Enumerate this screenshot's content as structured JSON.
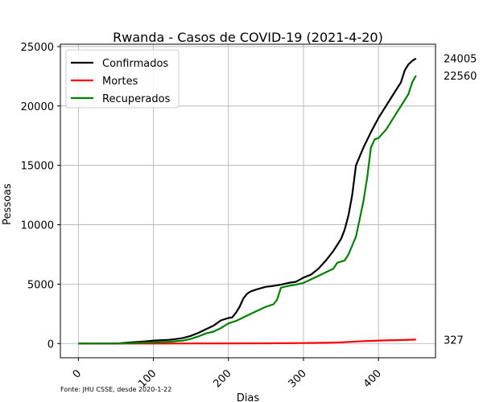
{
  "chart_data": {
    "type": "line",
    "title": "Rwanda - Casos de COVID-19 (2021-4-20)",
    "xlabel": "Dias",
    "ylabel": "Pessoas",
    "xlim": [
      -24,
      476
    ],
    "ylim": [
      -1200,
      25200
    ],
    "xticks": [
      0,
      100,
      200,
      300,
      400
    ],
    "yticks": [
      0,
      5000,
      10000,
      15000,
      20000,
      25000
    ],
    "grid": true,
    "legend_position": "top-left",
    "source": "Fonte: JHU CSSE, desde 2020-1-22",
    "series": [
      {
        "name": "Confirmados",
        "color": "#000000",
        "end_label": "24005",
        "points": [
          [
            0,
            0
          ],
          [
            40,
            0
          ],
          [
            55,
            20
          ],
          [
            70,
            100
          ],
          [
            90,
            180
          ],
          [
            100,
            250
          ],
          [
            120,
            310
          ],
          [
            130,
            380
          ],
          [
            140,
            470
          ],
          [
            150,
            650
          ],
          [
            160,
            900
          ],
          [
            170,
            1200
          ],
          [
            180,
            1500
          ],
          [
            190,
            1950
          ],
          [
            200,
            2150
          ],
          [
            205,
            2200
          ],
          [
            210,
            2600
          ],
          [
            215,
            3100
          ],
          [
            220,
            3800
          ],
          [
            225,
            4200
          ],
          [
            230,
            4400
          ],
          [
            240,
            4600
          ],
          [
            250,
            4780
          ],
          [
            260,
            4850
          ],
          [
            270,
            4950
          ],
          [
            280,
            5100
          ],
          [
            290,
            5200
          ],
          [
            300,
            5550
          ],
          [
            310,
            5800
          ],
          [
            320,
            6300
          ],
          [
            330,
            7000
          ],
          [
            340,
            7800
          ],
          [
            350,
            8800
          ],
          [
            355,
            9600
          ],
          [
            360,
            10800
          ],
          [
            365,
            12500
          ],
          [
            370,
            15000
          ],
          [
            380,
            16500
          ],
          [
            390,
            17800
          ],
          [
            400,
            19000
          ],
          [
            410,
            20000
          ],
          [
            420,
            21000
          ],
          [
            430,
            22000
          ],
          [
            435,
            23000
          ],
          [
            440,
            23500
          ],
          [
            445,
            23800
          ],
          [
            450,
            24005
          ]
        ]
      },
      {
        "name": "Mortes",
        "color": "#ff0000",
        "end_label": "327",
        "points": [
          [
            0,
            0
          ],
          [
            100,
            0
          ],
          [
            150,
            5
          ],
          [
            200,
            10
          ],
          [
            250,
            20
          ],
          [
            300,
            40
          ],
          [
            330,
            60
          ],
          [
            350,
            100
          ],
          [
            380,
            200
          ],
          [
            400,
            250
          ],
          [
            420,
            280
          ],
          [
            450,
            327
          ]
        ]
      },
      {
        "name": "Recuperados",
        "color": "#008000",
        "end_label": "22560",
        "points": [
          [
            0,
            0
          ],
          [
            50,
            0
          ],
          [
            80,
            50
          ],
          [
            100,
            100
          ],
          [
            120,
            150
          ],
          [
            140,
            250
          ],
          [
            150,
            400
          ],
          [
            160,
            600
          ],
          [
            170,
            850
          ],
          [
            180,
            1000
          ],
          [
            190,
            1300
          ],
          [
            200,
            1700
          ],
          [
            210,
            1900
          ],
          [
            220,
            2200
          ],
          [
            230,
            2500
          ],
          [
            240,
            2800
          ],
          [
            250,
            3100
          ],
          [
            260,
            3300
          ],
          [
            265,
            3700
          ],
          [
            270,
            4700
          ],
          [
            280,
            4850
          ],
          [
            290,
            4950
          ],
          [
            300,
            5100
          ],
          [
            310,
            5400
          ],
          [
            320,
            5700
          ],
          [
            330,
            6000
          ],
          [
            340,
            6300
          ],
          [
            345,
            6800
          ],
          [
            355,
            7000
          ],
          [
            360,
            7500
          ],
          [
            370,
            9000
          ],
          [
            375,
            10500
          ],
          [
            380,
            12000
          ],
          [
            385,
            14000
          ],
          [
            390,
            16500
          ],
          [
            395,
            17200
          ],
          [
            400,
            17300
          ],
          [
            410,
            18000
          ],
          [
            420,
            19000
          ],
          [
            430,
            20000
          ],
          [
            440,
            21000
          ],
          [
            445,
            22000
          ],
          [
            450,
            22560
          ]
        ]
      }
    ]
  }
}
